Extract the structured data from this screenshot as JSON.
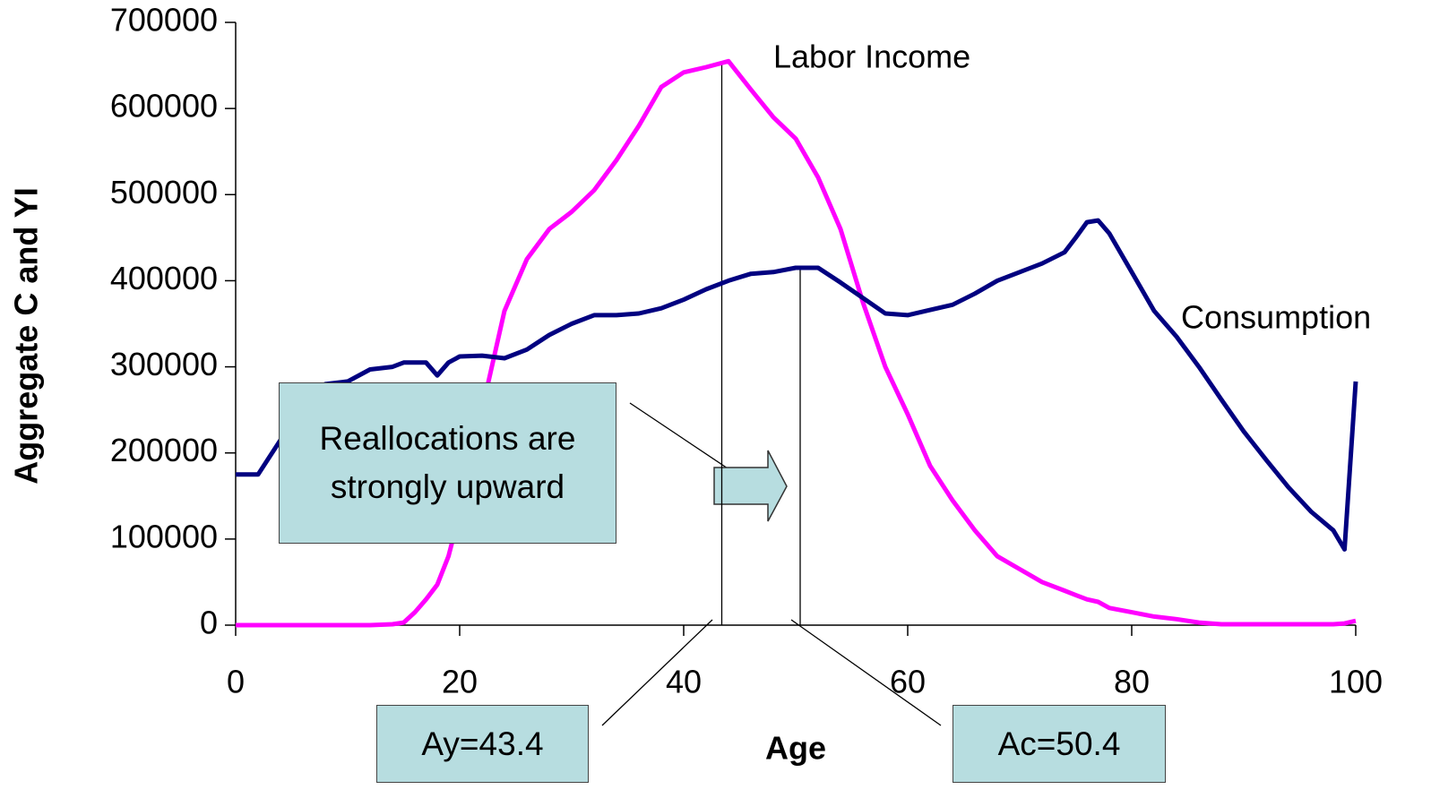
{
  "chart_data": {
    "type": "line",
    "x_label": "Age",
    "y_label": "Aggregate C and YI",
    "x": [
      0,
      2,
      4,
      6,
      8,
      10,
      12,
      14,
      15,
      16,
      17,
      18,
      19,
      20,
      22,
      24,
      26,
      28,
      30,
      32,
      34,
      36,
      38,
      40,
      42,
      44,
      46,
      48,
      50,
      52,
      54,
      56,
      58,
      60,
      62,
      64,
      66,
      68,
      70,
      72,
      74,
      75,
      76,
      77,
      78,
      80,
      82,
      84,
      86,
      88,
      90,
      92,
      94,
      96,
      98,
      99,
      100
    ],
    "series": [
      {
        "name": "Labor Income",
        "color": "#ff00ff",
        "values": [
          0,
          0,
          0,
          0,
          0,
          0,
          0,
          1000,
          3000,
          15000,
          30000,
          47000,
          80000,
          130000,
          250000,
          365000,
          425000,
          460000,
          480000,
          505000,
          540000,
          580000,
          625000,
          642000,
          648000,
          655000,
          622000,
          590000,
          565000,
          520000,
          460000,
          375000,
          300000,
          245000,
          185000,
          145000,
          110000,
          80000,
          65000,
          50000,
          40000,
          35000,
          30000,
          27000,
          20000,
          15000,
          10000,
          7000,
          3000,
          1000,
          1000,
          1000,
          1000,
          1000,
          1000,
          2000,
          5000
        ]
      },
      {
        "name": "Consumption",
        "color": "#000080",
        "values": [
          175000,
          175000,
          215000,
          260000,
          280000,
          283000,
          297000,
          300000,
          305000,
          305000,
          305000,
          290000,
          305000,
          312000,
          313000,
          310000,
          320000,
          337000,
          350000,
          360000,
          360000,
          362000,
          368000,
          378000,
          390000,
          400000,
          408000,
          410000,
          415000,
          415000,
          398000,
          380000,
          362000,
          360000,
          366000,
          372000,
          385000,
          400000,
          410000,
          420000,
          433000,
          450000,
          468000,
          470000,
          455000,
          410000,
          365000,
          335000,
          300000,
          262000,
          225000,
          192000,
          160000,
          132000,
          110000,
          88000,
          283000
        ]
      }
    ],
    "xlim": [
      0,
      100
    ],
    "xticks": [
      0,
      20,
      40,
      60,
      80,
      100
    ],
    "ylim": [
      0,
      700000
    ],
    "yticks": [
      0,
      100000,
      200000,
      300000,
      400000,
      500000,
      600000,
      700000
    ],
    "grid": false,
    "callout": "Reallocations are strongly upward",
    "annotations": [
      {
        "label": "Ay=43.4",
        "value": 43.4
      },
      {
        "label": "Ac=50.4",
        "value": 50.4
      }
    ]
  }
}
